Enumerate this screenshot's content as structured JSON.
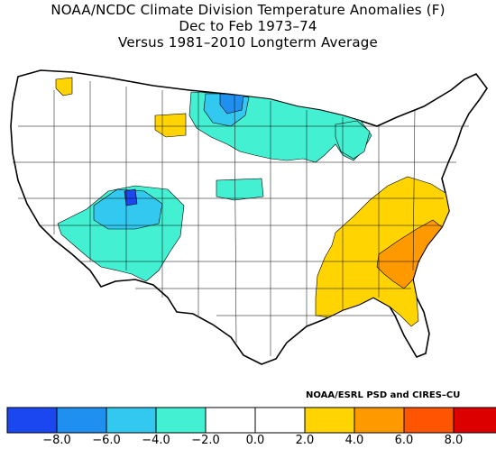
{
  "titles": {
    "line1": "NOAA/NCDC Climate Division Temperature Anomalies (F)",
    "line2": "Dec to Feb 1973–74",
    "line3": "Versus 1981–2010 Longterm Average"
  },
  "credit": "NOAA/ESRL PSD and CIRES–CU",
  "legend": {
    "colors": [
      "#1a47f0",
      "#1f8ff0",
      "#33c8f0",
      "#44f0d2",
      "#ffffff",
      "#ffffff",
      "#ffd400",
      "#ff9900",
      "#ff5500",
      "#dd0000"
    ],
    "tick_labels": [
      "−8.0",
      "−6.0",
      "−4.0",
      "−2.0",
      "0.0",
      "2.0",
      "4.0",
      "6.0",
      "8.0"
    ]
  },
  "colors": {
    "below_2_4": "#44f0d2",
    "below_4_6": "#33c8f0",
    "below_6_8": "#1f8ff0",
    "below_8": "#1a47f0",
    "above_2_4": "#ffd400",
    "above_4_6": "#ff9900",
    "border": "#000000"
  }
}
